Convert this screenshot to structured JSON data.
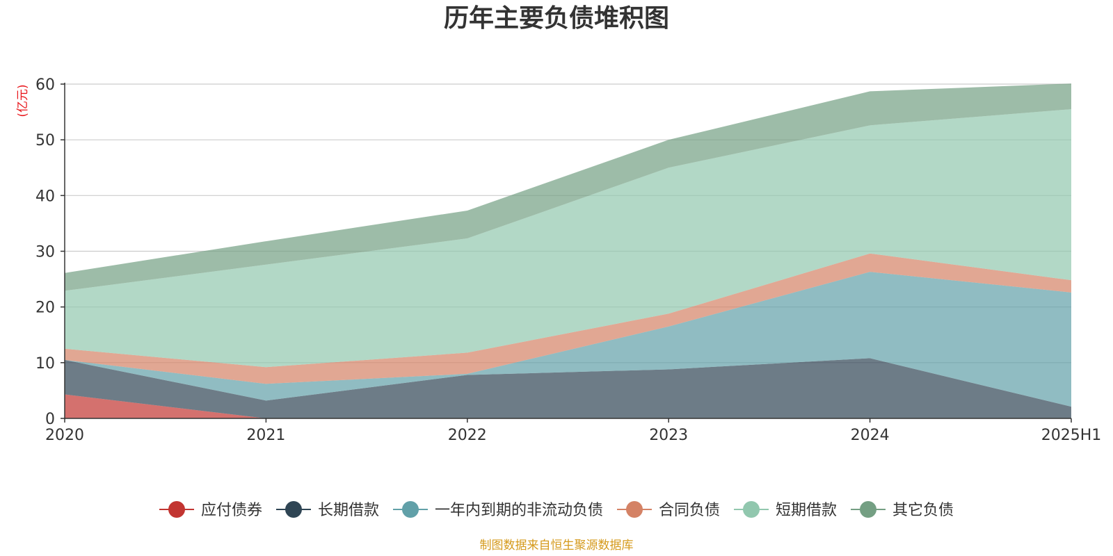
{
  "chart_data": {
    "type": "area",
    "stacked": true,
    "title": "历年主要负债堆积图",
    "unit_label": "(亿元)",
    "x": [
      "2020",
      "2021",
      "2022",
      "2023",
      "2024",
      "2025H1"
    ],
    "ylim": [
      0,
      60
    ],
    "yticks": [
      0,
      10,
      20,
      30,
      40,
      50,
      60
    ],
    "grid": true,
    "legend_position": "bottom",
    "series": [
      {
        "name": "应付债券",
        "color": "#c23531",
        "values": [
          4.3,
          0,
          0,
          0,
          0,
          0
        ]
      },
      {
        "name": "长期借款",
        "color": "#2f4554",
        "values": [
          6.2,
          3.2,
          7.8,
          8.8,
          10.8,
          2.1
        ]
      },
      {
        "name": "一年内到期的非流动负债",
        "color": "#61a0a8",
        "values": [
          0,
          3.0,
          0.2,
          7.7,
          15.5,
          20.5
        ]
      },
      {
        "name": "合同负债",
        "color": "#d48265",
        "values": [
          2.0,
          3.0,
          3.8,
          2.3,
          3.3,
          2.2
        ]
      },
      {
        "name": "短期借款",
        "color": "#91c7ae",
        "values": [
          10.4,
          18.4,
          20.5,
          26.2,
          23.0,
          30.7
        ]
      },
      {
        "name": "其它负债",
        "color": "#749f83",
        "values": [
          3.2,
          4.2,
          5.0,
          5.0,
          6.1,
          4.6
        ]
      }
    ],
    "source": "制图数据来自恒生聚源数据库"
  }
}
